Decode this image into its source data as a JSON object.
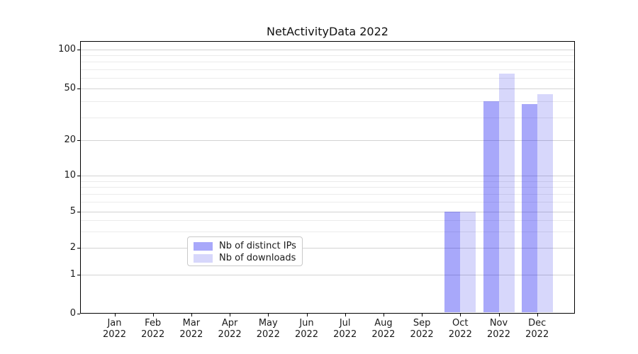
{
  "figure": {
    "title": "NetActivityData 2022"
  },
  "chart_data": {
    "type": "bar",
    "title": "NetActivityData 2022",
    "categories": [
      "Jan",
      "Feb",
      "Mar",
      "Apr",
      "May",
      "Jun",
      "Jul",
      "Aug",
      "Sep",
      "Oct",
      "Nov",
      "Dec"
    ],
    "category_year": "2022",
    "series": [
      {
        "name": "Nb of distinct IPs",
        "color": "#a8a8fa",
        "fill": "rgba(6,6,241,0.35)",
        "values": [
          0,
          0,
          0,
          0,
          0,
          0,
          0,
          0,
          0,
          5,
          40,
          38
        ]
      },
      {
        "name": "Nb of downloads",
        "color": "#d8d8fa",
        "fill": "rgba(5,5,230,0.16)",
        "values": [
          0,
          0,
          0,
          0,
          0,
          0,
          0,
          0,
          0,
          5,
          65,
          45
        ]
      }
    ],
    "xlabel": "",
    "ylabel": "",
    "ylim": [
      0,
      100
    ],
    "yscale": "log-like with 0 baseline",
    "y_major_ticks": [
      0,
      1,
      2,
      5,
      10,
      20,
      50,
      100
    ],
    "y_minor_ticks": [
      3,
      4,
      6,
      7,
      8,
      9,
      30,
      40,
      60,
      70,
      80,
      90
    ],
    "grid": true,
    "legend_position": "lower center"
  }
}
